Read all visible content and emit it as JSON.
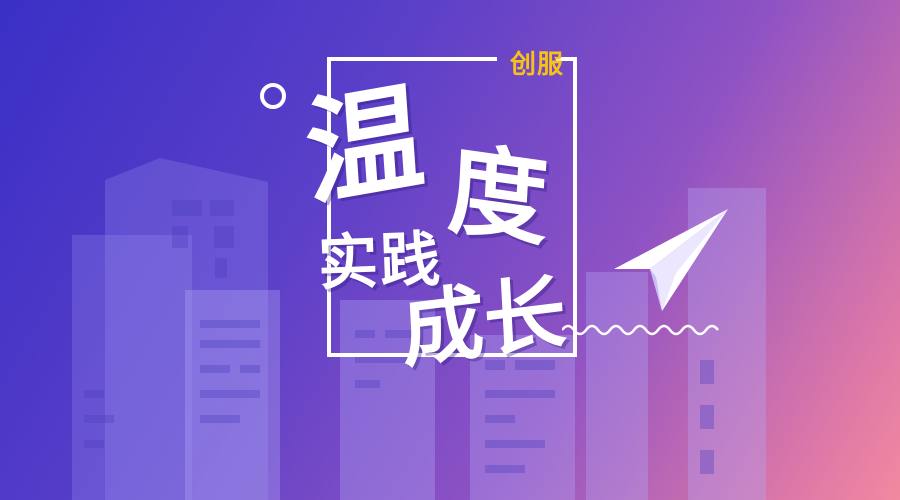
{
  "headline": {
    "tag": "创服",
    "char1": "温",
    "char2": "度",
    "line2": "实践",
    "line3": "成长"
  },
  "colors": {
    "tag": "#f6c21a",
    "text": "#ffffff",
    "gradient_start": "#3a2fc6",
    "gradient_end": "#f08aa0"
  },
  "icons": [
    "paper-plane-icon",
    "circle-icon",
    "wave-icon"
  ]
}
